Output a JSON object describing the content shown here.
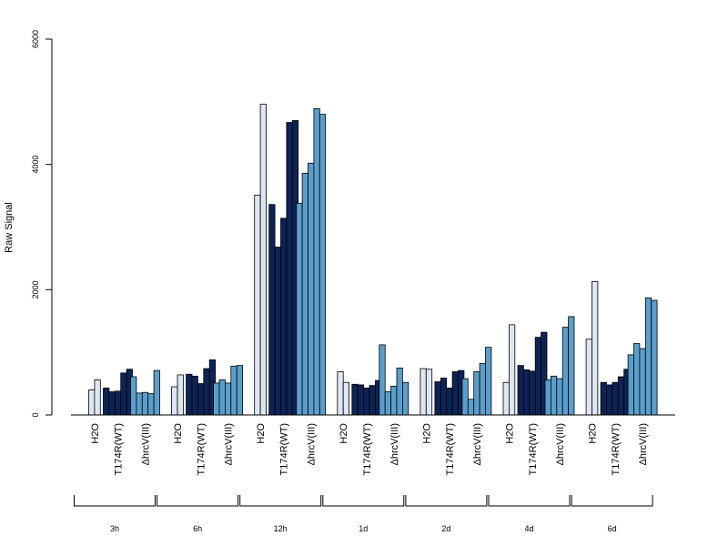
{
  "chart_data": {
    "type": "bar",
    "ylabel": "Raw Signal",
    "ylim": [
      0,
      6000
    ],
    "yticks": [
      0,
      2000,
      4000,
      6000
    ],
    "condition_labels": [
      "H2O",
      "T174R(WT)",
      "ΔhrcV(III)"
    ],
    "colors": {
      "H2O": "#dde6f2",
      "T174R(WT)": "#0c2356",
      "ΔhrcV(III)": "#5a9ecb"
    },
    "groups": [
      {
        "time": "3h",
        "H2O": [
          400,
          560
        ],
        "T174R(WT)": [
          430,
          370,
          380,
          670,
          730
        ],
        "ΔhrcV(III)": [
          610,
          350,
          360,
          340,
          710
        ]
      },
      {
        "time": "6h",
        "H2O": [
          450,
          640
        ],
        "T174R(WT)": [
          650,
          620,
          500,
          740,
          880
        ],
        "ΔhrcV(III)": [
          510,
          560,
          510,
          780,
          790
        ]
      },
      {
        "time": "12h",
        "H2O": [
          3510,
          4960
        ],
        "T174R(WT)": [
          3360,
          2680,
          3140,
          4670,
          4700
        ],
        "ΔhrcV(III)": [
          3380,
          3860,
          4020,
          4890,
          4800
        ]
      },
      {
        "time": "1d",
        "H2O": [
          690,
          520
        ],
        "T174R(WT)": [
          490,
          480,
          430,
          470,
          550
        ],
        "ΔhrcV(III)": [
          1120,
          370,
          460,
          750,
          520
        ]
      },
      {
        "time": "2d",
        "H2O": [
          740,
          730
        ],
        "T174R(WT)": [
          530,
          590,
          430,
          690,
          710
        ],
        "ΔhrcV(III)": [
          580,
          250,
          690,
          820,
          1080
        ]
      },
      {
        "time": "4d",
        "H2O": [
          520,
          1440
        ],
        "T174R(WT)": [
          790,
          720,
          700,
          1240,
          1320
        ],
        "ΔhrcV(III)": [
          560,
          620,
          580,
          1400,
          1570
        ]
      },
      {
        "time": "6d",
        "H2O": [
          1210,
          2130
        ],
        "T174R(WT)": [
          520,
          480,
          520,
          610,
          730
        ],
        "ΔhrcV(III)": [
          960,
          1140,
          1060,
          1870,
          1830
        ]
      }
    ]
  }
}
